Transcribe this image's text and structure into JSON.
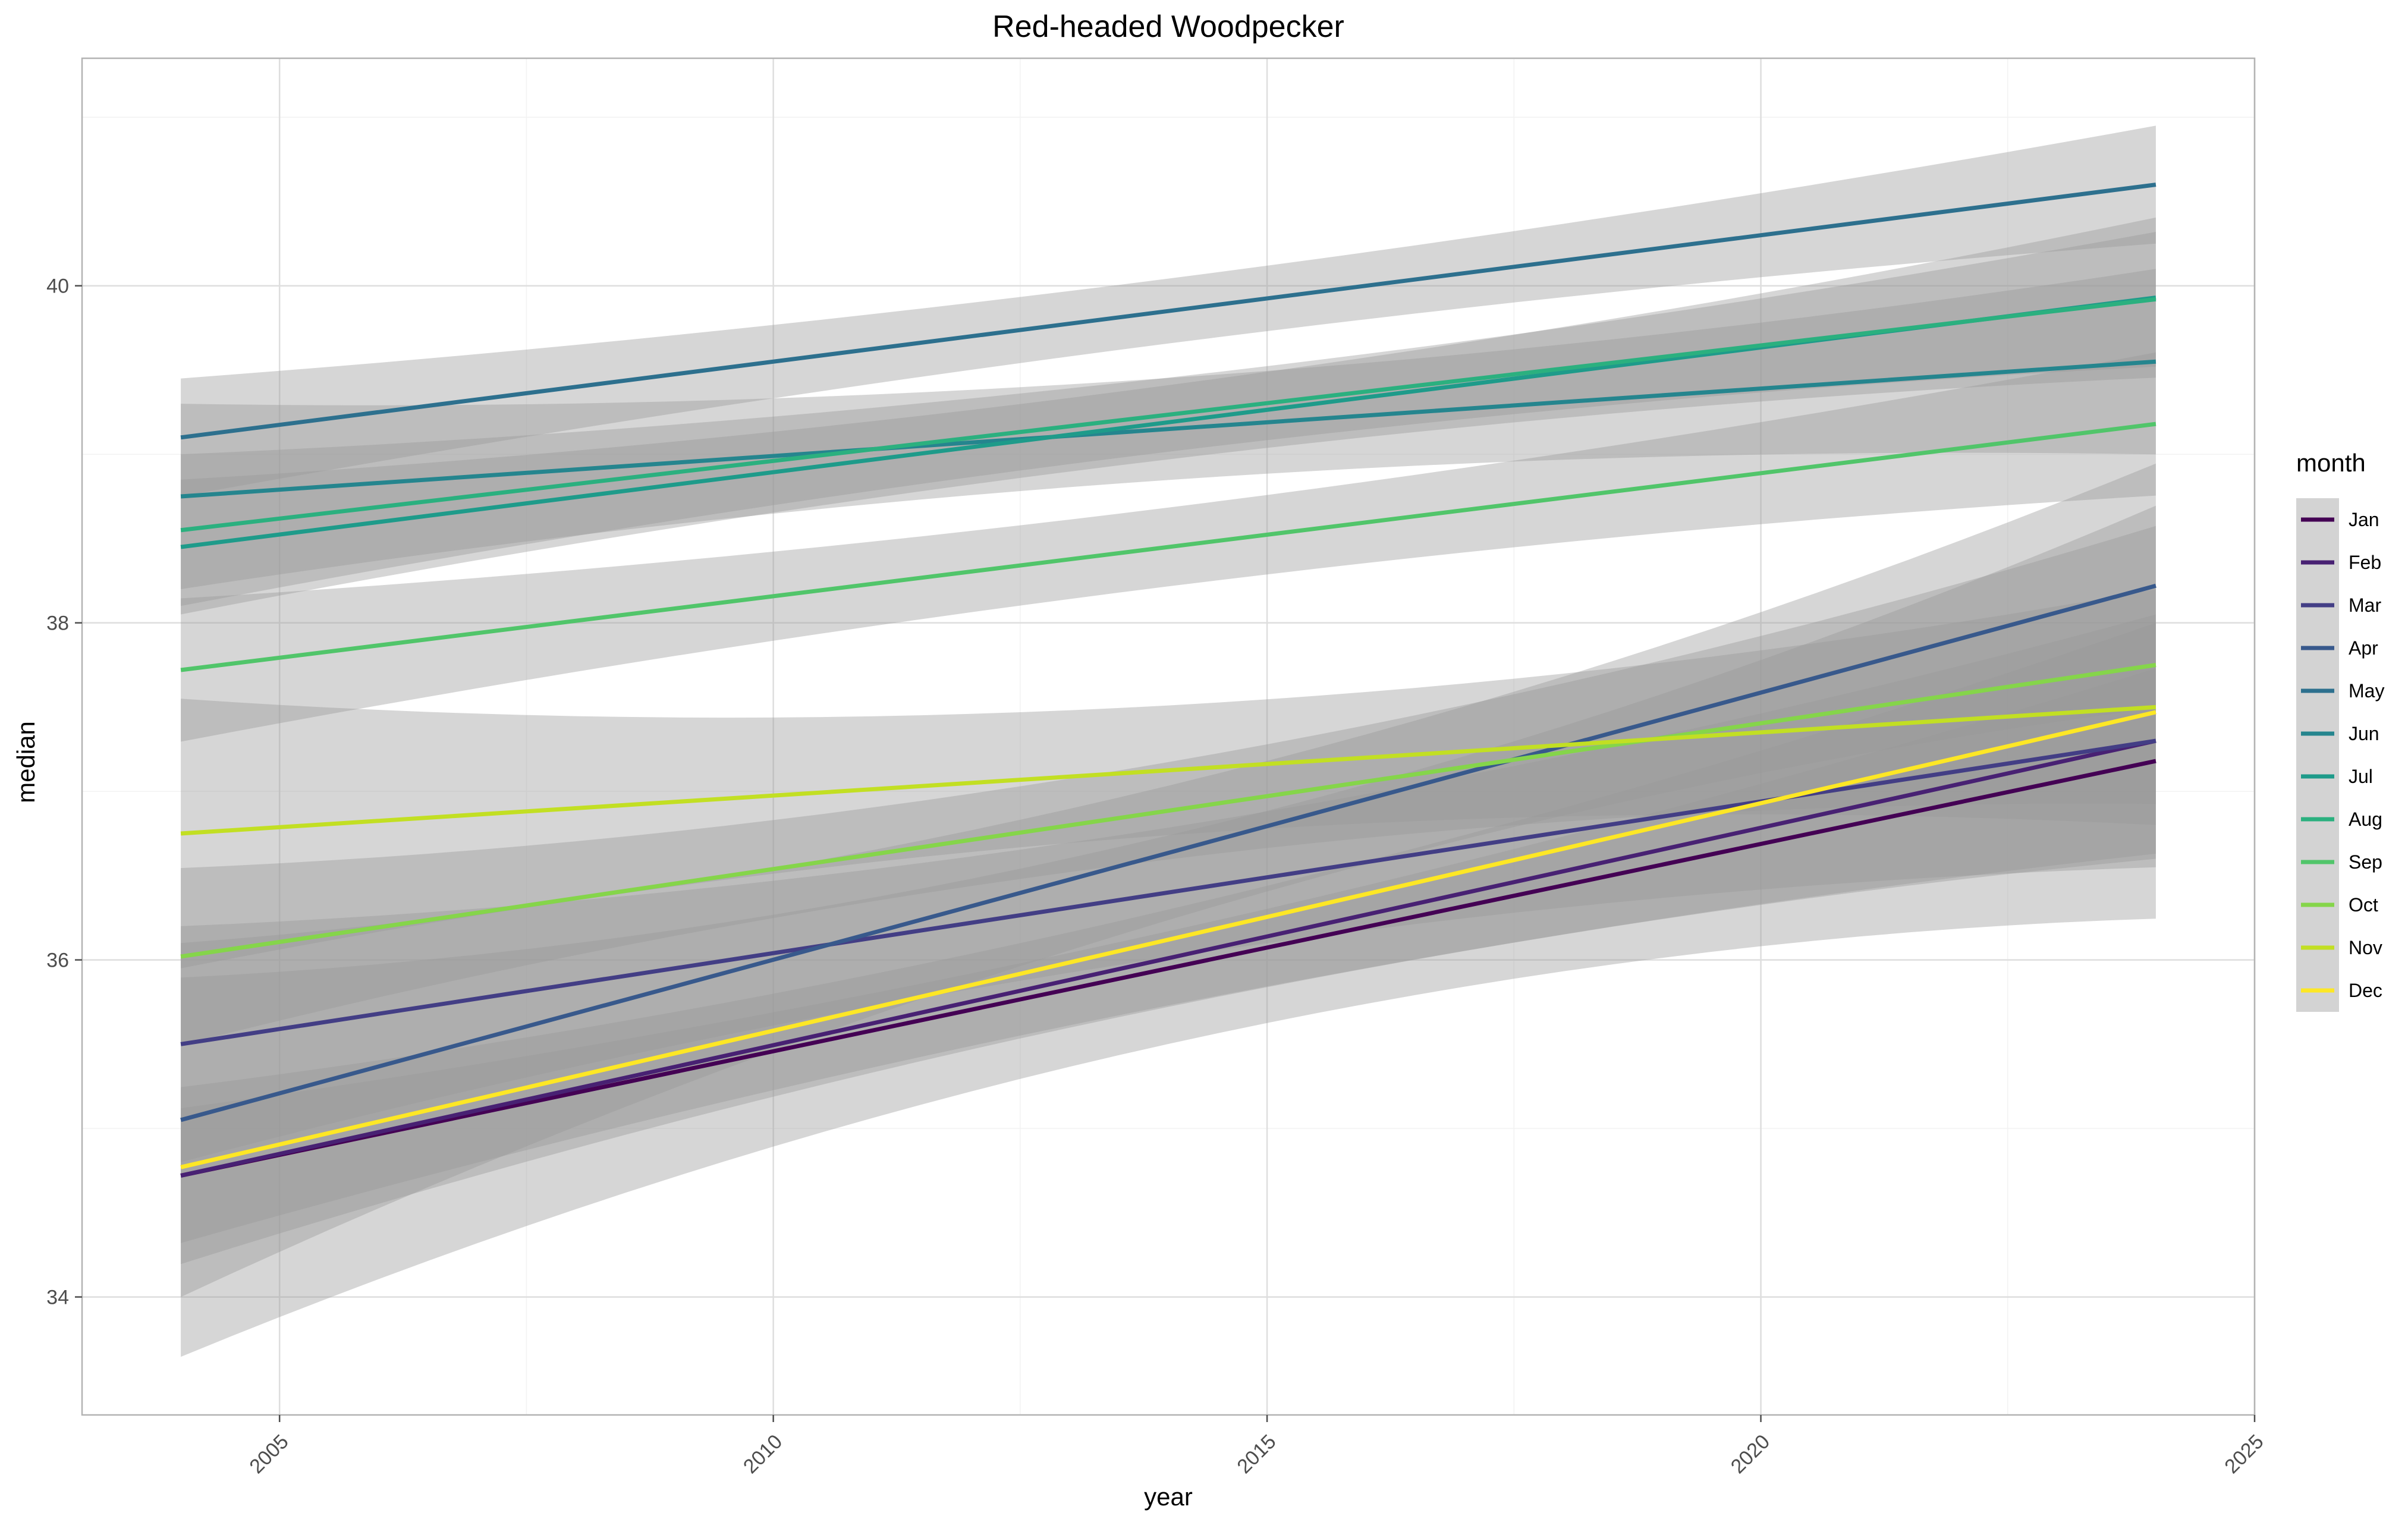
{
  "chart_data": {
    "type": "line",
    "title": "Red-headed Woodpecker",
    "xlabel": "year",
    "ylabel": "median",
    "xlim": [
      2003,
      2025
    ],
    "ylim": [
      33.3,
      41.35
    ],
    "x_ticks": [
      2005,
      2010,
      2015,
      2020,
      2025
    ],
    "y_ticks": [
      34,
      36,
      38,
      40
    ],
    "grid": true,
    "legend": {
      "title": "month",
      "position": "right"
    },
    "x": [
      2004,
      2024
    ],
    "series": [
      {
        "name": "Jan",
        "color": "#440154",
        "values": [
          34.72,
          37.18
        ],
        "band_lower": [
          34.32,
          36.62
        ],
        "band_upper": [
          35.12,
          37.72
        ]
      },
      {
        "name": "Feb",
        "color": "#482173",
        "values": [
          34.72,
          37.3
        ],
        "band_lower": [
          34.2,
          36.6
        ],
        "band_upper": [
          35.25,
          38.0
        ]
      },
      {
        "name": "Mar",
        "color": "#433E85",
        "values": [
          35.5,
          37.3
        ],
        "band_lower": [
          34.8,
          36.55
        ],
        "band_upper": [
          36.2,
          38.05
        ]
      },
      {
        "name": "Apr",
        "color": "#38598C",
        "values": [
          35.05,
          38.22
        ],
        "band_lower": [
          34.0,
          37.5
        ],
        "band_upper": [
          36.1,
          38.95
        ]
      },
      {
        "name": "May",
        "color": "#2D708E",
        "values": [
          39.1,
          40.6
        ],
        "band_lower": [
          38.75,
          40.25
        ],
        "band_upper": [
          39.45,
          40.95
        ]
      },
      {
        "name": "Jun",
        "color": "#25858E",
        "values": [
          38.75,
          39.55
        ],
        "band_lower": [
          38.2,
          39.0
        ],
        "band_upper": [
          39.3,
          40.1
        ]
      },
      {
        "name": "Jul",
        "color": "#1E9B8A",
        "values": [
          38.45,
          39.93
        ],
        "band_lower": [
          38.05,
          39.45
        ],
        "band_upper": [
          38.85,
          40.4
        ]
      },
      {
        "name": "Aug",
        "color": "#2BB07F",
        "values": [
          38.55,
          39.92
        ],
        "band_lower": [
          38.1,
          39.5
        ],
        "band_upper": [
          39.0,
          40.3
        ]
      },
      {
        "name": "Sep",
        "color": "#51C56A",
        "values": [
          37.72,
          39.18
        ],
        "band_lower": [
          37.3,
          38.75
        ],
        "band_upper": [
          38.15,
          39.6
        ]
      },
      {
        "name": "Oct",
        "color": "#85D54A",
        "values": [
          36.02,
          37.75
        ],
        "band_lower": [
          35.5,
          36.9
        ],
        "band_upper": [
          36.55,
          38.55
        ]
      },
      {
        "name": "Nov",
        "color": "#C2DF23",
        "values": [
          36.75,
          37.5
        ],
        "band_lower": [
          35.95,
          36.8
        ],
        "band_upper": [
          37.55,
          38.2
        ]
      },
      {
        "name": "Dec",
        "color": "#FDE725",
        "values": [
          34.77,
          37.47
        ],
        "band_lower": [
          33.65,
          36.25
        ],
        "band_upper": [
          35.9,
          38.7
        ]
      }
    ]
  }
}
